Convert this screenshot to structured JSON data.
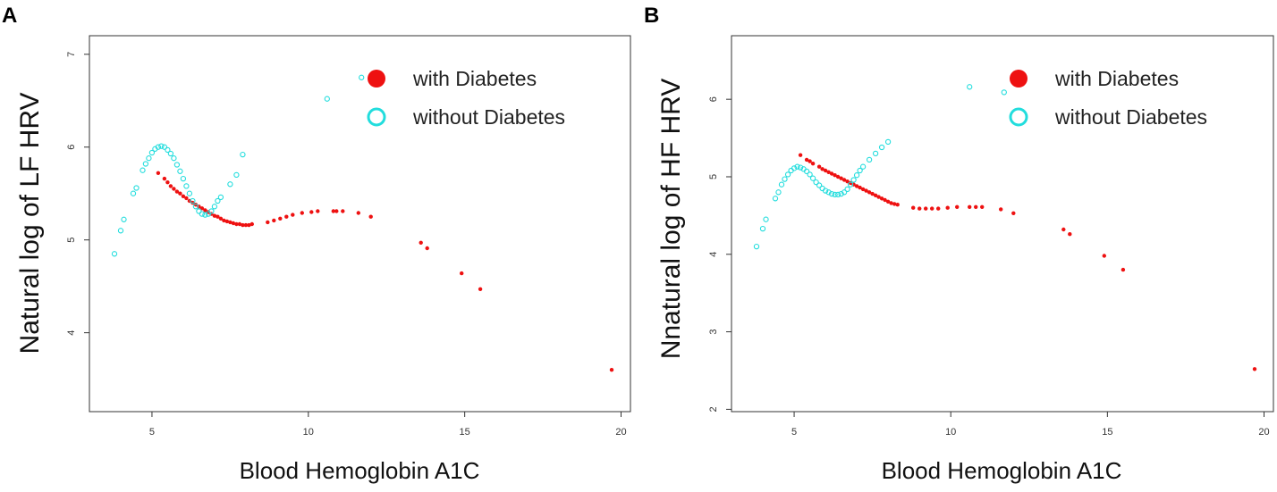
{
  "chart_data": [
    {
      "type": "scatter",
      "panel": "A",
      "title": "",
      "xlabel": "Blood Hemoglobin A1C",
      "ylabel": "Natural log of LF HRV",
      "xlim": [
        3,
        20.3
      ],
      "ylim": [
        3.15,
        7.2
      ],
      "xticks": [
        5,
        10,
        15,
        20
      ],
      "yticks": [
        4,
        5,
        6,
        7
      ],
      "grid": false,
      "legend_position": "top-right",
      "series": [
        {
          "name": "with Diabetes",
          "color": "#ee1111",
          "marker": "filled-dot",
          "points": [
            [
              5.2,
              5.72
            ],
            [
              5.4,
              5.66
            ],
            [
              5.5,
              5.62
            ],
            [
              5.6,
              5.58
            ],
            [
              5.7,
              5.55
            ],
            [
              5.8,
              5.52
            ],
            [
              5.9,
              5.5
            ],
            [
              6.0,
              5.47
            ],
            [
              6.1,
              5.45
            ],
            [
              6.2,
              5.42
            ],
            [
              6.3,
              5.4
            ],
            [
              6.4,
              5.38
            ],
            [
              6.5,
              5.36
            ],
            [
              6.6,
              5.34
            ],
            [
              6.7,
              5.32
            ],
            [
              6.8,
              5.3
            ],
            [
              6.9,
              5.28
            ],
            [
              7.0,
              5.26
            ],
            [
              7.1,
              5.25
            ],
            [
              7.2,
              5.23
            ],
            [
              7.3,
              5.21
            ],
            [
              7.4,
              5.2
            ],
            [
              7.5,
              5.19
            ],
            [
              7.6,
              5.18
            ],
            [
              7.7,
              5.17
            ],
            [
              7.8,
              5.17
            ],
            [
              7.9,
              5.16
            ],
            [
              8.0,
              5.16
            ],
            [
              8.1,
              5.16
            ],
            [
              8.2,
              5.17
            ],
            [
              8.7,
              5.19
            ],
            [
              8.9,
              5.21
            ],
            [
              9.1,
              5.23
            ],
            [
              9.3,
              5.25
            ],
            [
              9.5,
              5.27
            ],
            [
              9.8,
              5.29
            ],
            [
              10.1,
              5.3
            ],
            [
              10.3,
              5.31
            ],
            [
              10.8,
              5.31
            ],
            [
              10.9,
              5.31
            ],
            [
              11.1,
              5.31
            ],
            [
              11.6,
              5.29
            ],
            [
              12.0,
              5.25
            ],
            [
              13.6,
              4.97
            ],
            [
              13.8,
              4.91
            ],
            [
              14.9,
              4.64
            ],
            [
              15.5,
              4.47
            ],
            [
              19.7,
              3.6
            ]
          ]
        },
        {
          "name": "without Diabetes",
          "color": "#22dddd",
          "marker": "open-circle",
          "points": [
            [
              3.8,
              4.85
            ],
            [
              4.0,
              5.1
            ],
            [
              4.1,
              5.22
            ],
            [
              4.4,
              5.5
            ],
            [
              4.5,
              5.56
            ],
            [
              4.7,
              5.75
            ],
            [
              4.8,
              5.82
            ],
            [
              4.9,
              5.88
            ],
            [
              5.0,
              5.94
            ],
            [
              5.1,
              5.98
            ],
            [
              5.2,
              6.0
            ],
            [
              5.3,
              6.01
            ],
            [
              5.4,
              6.0
            ],
            [
              5.5,
              5.97
            ],
            [
              5.6,
              5.93
            ],
            [
              5.7,
              5.88
            ],
            [
              5.8,
              5.81
            ],
            [
              5.9,
              5.74
            ],
            [
              6.0,
              5.66
            ],
            [
              6.1,
              5.58
            ],
            [
              6.2,
              5.5
            ],
            [
              6.3,
              5.42
            ],
            [
              6.4,
              5.36
            ],
            [
              6.5,
              5.31
            ],
            [
              6.6,
              5.28
            ],
            [
              6.7,
              5.27
            ],
            [
              6.8,
              5.28
            ],
            [
              6.9,
              5.31
            ],
            [
              7.0,
              5.36
            ],
            [
              7.1,
              5.42
            ],
            [
              7.2,
              5.46
            ],
            [
              7.5,
              5.6
            ],
            [
              7.7,
              5.7
            ],
            [
              7.9,
              5.92
            ],
            [
              10.6,
              6.52
            ],
            [
              11.7,
              6.75
            ]
          ]
        }
      ]
    },
    {
      "type": "scatter",
      "panel": "B",
      "title": "",
      "xlabel": "Blood Hemoglobin A1C",
      "ylabel": "Nnatural log of HF HRV",
      "xlim": [
        3,
        20.3
      ],
      "ylim": [
        1.97,
        6.82
      ],
      "xticks": [
        5,
        10,
        15,
        20
      ],
      "yticks": [
        2,
        3,
        4,
        5,
        6
      ],
      "grid": false,
      "legend_position": "top-right",
      "series": [
        {
          "name": "with Diabetes",
          "color": "#ee1111",
          "marker": "filled-dot",
          "points": [
            [
              5.2,
              5.28
            ],
            [
              5.4,
              5.22
            ],
            [
              5.5,
              5.2
            ],
            [
              5.6,
              5.17
            ],
            [
              5.8,
              5.13
            ],
            [
              5.9,
              5.1
            ],
            [
              6.0,
              5.08
            ],
            [
              6.1,
              5.06
            ],
            [
              6.2,
              5.04
            ],
            [
              6.3,
              5.02
            ],
            [
              6.4,
              5.0
            ],
            [
              6.5,
              4.98
            ],
            [
              6.6,
              4.96
            ],
            [
              6.7,
              4.94
            ],
            [
              6.8,
              4.92
            ],
            [
              6.9,
              4.9
            ],
            [
              7.0,
              4.88
            ],
            [
              7.1,
              4.86
            ],
            [
              7.2,
              4.84
            ],
            [
              7.3,
              4.82
            ],
            [
              7.4,
              4.8
            ],
            [
              7.5,
              4.78
            ],
            [
              7.6,
              4.76
            ],
            [
              7.7,
              4.74
            ],
            [
              7.8,
              4.72
            ],
            [
              7.9,
              4.7
            ],
            [
              8.0,
              4.68
            ],
            [
              8.1,
              4.66
            ],
            [
              8.2,
              4.65
            ],
            [
              8.3,
              4.64
            ],
            [
              8.8,
              4.6
            ],
            [
              9.0,
              4.59
            ],
            [
              9.2,
              4.59
            ],
            [
              9.4,
              4.59
            ],
            [
              9.6,
              4.59
            ],
            [
              9.9,
              4.6
            ],
            [
              10.2,
              4.61
            ],
            [
              10.6,
              4.61
            ],
            [
              10.8,
              4.61
            ],
            [
              11.0,
              4.61
            ],
            [
              11.6,
              4.58
            ],
            [
              12.0,
              4.53
            ],
            [
              13.6,
              4.32
            ],
            [
              13.8,
              4.26
            ],
            [
              14.9,
              3.98
            ],
            [
              15.5,
              3.8
            ],
            [
              19.7,
              2.52
            ]
          ]
        },
        {
          "name": "without Diabetes",
          "color": "#22dddd",
          "marker": "open-circle",
          "points": [
            [
              3.8,
              4.1
            ],
            [
              4.0,
              4.33
            ],
            [
              4.1,
              4.45
            ],
            [
              4.4,
              4.72
            ],
            [
              4.5,
              4.8
            ],
            [
              4.6,
              4.9
            ],
            [
              4.7,
              4.97
            ],
            [
              4.8,
              5.03
            ],
            [
              4.9,
              5.08
            ],
            [
              5.0,
              5.11
            ],
            [
              5.1,
              5.13
            ],
            [
              5.2,
              5.12
            ],
            [
              5.3,
              5.1
            ],
            [
              5.4,
              5.07
            ],
            [
              5.5,
              5.03
            ],
            [
              5.6,
              4.98
            ],
            [
              5.7,
              4.93
            ],
            [
              5.8,
              4.89
            ],
            [
              5.9,
              4.85
            ],
            [
              6.0,
              4.82
            ],
            [
              6.1,
              4.8
            ],
            [
              6.2,
              4.78
            ],
            [
              6.3,
              4.77
            ],
            [
              6.4,
              4.77
            ],
            [
              6.5,
              4.78
            ],
            [
              6.6,
              4.8
            ],
            [
              6.7,
              4.84
            ],
            [
              6.8,
              4.9
            ],
            [
              6.9,
              4.96
            ],
            [
              7.0,
              5.02
            ],
            [
              7.1,
              5.08
            ],
            [
              7.2,
              5.13
            ],
            [
              7.4,
              5.22
            ],
            [
              7.6,
              5.3
            ],
            [
              7.8,
              5.38
            ],
            [
              8.0,
              5.45
            ],
            [
              10.6,
              6.16
            ],
            [
              11.7,
              6.09
            ]
          ]
        }
      ]
    }
  ]
}
